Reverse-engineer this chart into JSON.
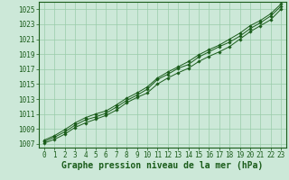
{
  "title": "",
  "xlabel": "Graphe pression niveau de la mer (hPa)",
  "ylabel": "",
  "background_color": "#cce8d8",
  "grid_color": "#99ccaa",
  "line_color": "#1a5c1a",
  "spine_color": "#1a5c1a",
  "xlim": [
    -0.5,
    23.5
  ],
  "ylim": [
    1006.5,
    1026.0
  ],
  "yticks": [
    1007,
    1009,
    1011,
    1013,
    1015,
    1017,
    1019,
    1021,
    1023,
    1025
  ],
  "xticks": [
    0,
    1,
    2,
    3,
    4,
    5,
    6,
    7,
    8,
    9,
    10,
    11,
    12,
    13,
    14,
    15,
    16,
    17,
    18,
    19,
    20,
    21,
    22,
    23
  ],
  "line1_x": [
    0,
    1,
    2,
    3,
    4,
    5,
    6,
    7,
    8,
    9,
    10,
    11,
    12,
    13,
    14,
    15,
    16,
    17,
    18,
    19,
    20,
    21,
    22,
    23
  ],
  "line1_y": [
    1007.1,
    1007.6,
    1008.3,
    1009.2,
    1009.8,
    1010.3,
    1010.8,
    1011.5,
    1012.5,
    1013.2,
    1013.8,
    1015.0,
    1015.8,
    1016.5,
    1017.1,
    1018.0,
    1018.7,
    1019.3,
    1020.0,
    1021.0,
    1022.0,
    1022.8,
    1023.6,
    1025.0
  ],
  "line2_x": [
    0,
    1,
    2,
    3,
    4,
    5,
    6,
    7,
    8,
    9,
    10,
    11,
    12,
    13,
    14,
    15,
    16,
    17,
    18,
    19,
    20,
    21,
    22,
    23
  ],
  "line2_y": [
    1007.3,
    1007.9,
    1008.6,
    1009.5,
    1010.2,
    1010.6,
    1011.1,
    1011.9,
    1012.8,
    1013.5,
    1014.3,
    1015.6,
    1016.3,
    1017.1,
    1017.6,
    1018.6,
    1019.3,
    1020.0,
    1020.6,
    1021.4,
    1022.4,
    1023.2,
    1024.1,
    1025.4
  ],
  "line3_x": [
    0,
    1,
    2,
    3,
    4,
    5,
    6,
    7,
    8,
    9,
    10,
    11,
    12,
    13,
    14,
    15,
    16,
    17,
    18,
    19,
    20,
    21,
    22,
    23
  ],
  "line3_y": [
    1007.5,
    1008.1,
    1008.9,
    1009.8,
    1010.5,
    1011.0,
    1011.4,
    1012.2,
    1013.1,
    1013.8,
    1014.6,
    1015.8,
    1016.6,
    1017.3,
    1018.0,
    1018.9,
    1019.6,
    1020.2,
    1021.0,
    1021.8,
    1022.8,
    1023.5,
    1024.4,
    1025.7
  ],
  "tick_fontsize": 5.5,
  "xlabel_fontsize": 7.0,
  "marker": "D",
  "markersize": 1.8,
  "linewidth": 0.7
}
